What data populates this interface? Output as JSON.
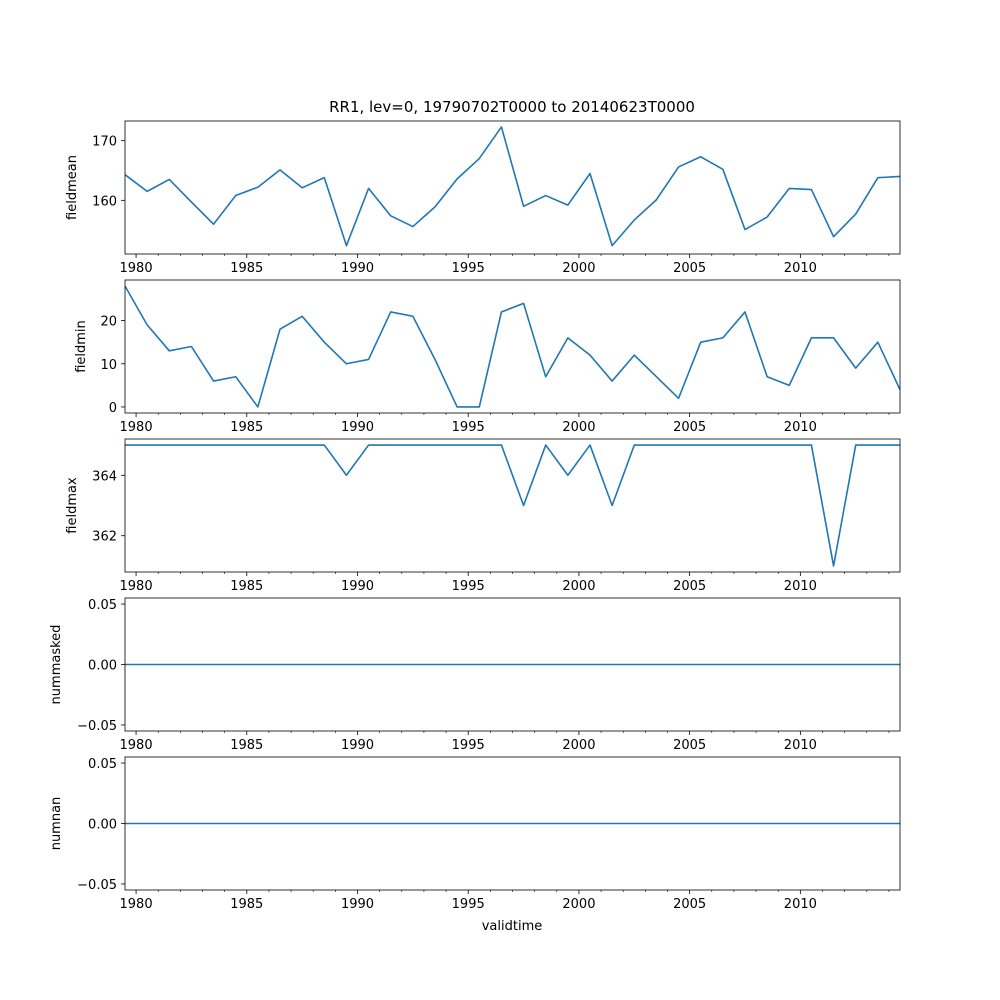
{
  "figure": {
    "title": "RR1, lev=0, 19790702T0000 to 20140623T0000",
    "xlabel": "validtime",
    "line_color": "#1f77b4"
  },
  "chart_data": [
    {
      "type": "line",
      "ylabel": "fieldmean",
      "xlim": [
        1979.5,
        2014.5
      ],
      "ylim": [
        151.0,
        173.3
      ],
      "x_ticks": [
        1980,
        1985,
        1990,
        1995,
        2000,
        2005,
        2010
      ],
      "y_ticks": [
        160,
        170
      ],
      "x": [
        1979.5,
        1980.5,
        1981.5,
        1982.5,
        1983.5,
        1984.5,
        1985.5,
        1986.5,
        1987.5,
        1988.5,
        1989.5,
        1990.5,
        1991.5,
        1992.5,
        1993.5,
        1994.5,
        1995.5,
        1996.5,
        1997.5,
        1998.5,
        1999.5,
        2000.5,
        2001.5,
        2002.5,
        2003.5,
        2004.5,
        2005.5,
        2006.5,
        2007.5,
        2008.5,
        2009.5,
        2010.5,
        2011.5,
        2012.5,
        2013.5,
        2014.5
      ],
      "values": [
        164.3,
        161.5,
        163.5,
        159.7,
        156.0,
        160.8,
        162.2,
        165.1,
        162.1,
        163.8,
        152.4,
        162.0,
        157.4,
        155.6,
        158.9,
        163.6,
        167.0,
        172.3,
        159.0,
        160.8,
        159.2,
        164.5,
        152.4,
        156.7,
        160.1,
        165.6,
        167.3,
        165.2,
        155.1,
        157.2,
        162.0,
        161.8,
        153.9,
        157.7,
        163.8,
        164.0
      ]
    },
    {
      "type": "line",
      "ylabel": "fieldmin",
      "xlim": [
        1979.5,
        2014.5
      ],
      "ylim": [
        -1.4,
        29.4
      ],
      "x_ticks": [
        1980,
        1985,
        1990,
        1995,
        2000,
        2005,
        2010
      ],
      "y_ticks": [
        0,
        10,
        20
      ],
      "x": [
        1979.5,
        1980.5,
        1981.5,
        1982.5,
        1983.5,
        1984.5,
        1985.5,
        1986.5,
        1987.5,
        1988.5,
        1989.5,
        1990.5,
        1991.5,
        1992.5,
        1993.5,
        1994.5,
        1995.5,
        1996.5,
        1997.5,
        1998.5,
        1999.5,
        2000.5,
        2001.5,
        2002.5,
        2003.5,
        2004.5,
        2005.5,
        2006.5,
        2007.5,
        2008.5,
        2009.5,
        2010.5,
        2011.5,
        2012.5,
        2013.5,
        2014.5
      ],
      "values": [
        28,
        19,
        13,
        14,
        6,
        7,
        0,
        18,
        21,
        15,
        10,
        11,
        22,
        21,
        11,
        0,
        0,
        22,
        24,
        7,
        16,
        12,
        6,
        12,
        7,
        2,
        15,
        16,
        22,
        7,
        5,
        16,
        16,
        9,
        15,
        4
      ]
    },
    {
      "type": "line",
      "ylabel": "fieldmax",
      "xlim": [
        1979.5,
        2014.5
      ],
      "ylim": [
        360.8,
        365.2
      ],
      "x_ticks": [
        1980,
        1985,
        1990,
        1995,
        2000,
        2005,
        2010
      ],
      "y_ticks": [
        362,
        364
      ],
      "x": [
        1979.5,
        1980.5,
        1981.5,
        1982.5,
        1983.5,
        1984.5,
        1985.5,
        1986.5,
        1987.5,
        1988.5,
        1989.5,
        1990.5,
        1991.5,
        1992.5,
        1993.5,
        1994.5,
        1995.5,
        1996.5,
        1997.5,
        1998.5,
        1999.5,
        2000.5,
        2001.5,
        2002.5,
        2003.5,
        2004.5,
        2005.5,
        2006.5,
        2007.5,
        2008.5,
        2009.5,
        2010.5,
        2011.5,
        2012.5,
        2013.5,
        2014.5
      ],
      "values": [
        365,
        365,
        365,
        365,
        365,
        365,
        365,
        365,
        365,
        365,
        364,
        365,
        365,
        365,
        365,
        365,
        365,
        365,
        363,
        365,
        364,
        365,
        363,
        365,
        365,
        365,
        365,
        365,
        365,
        365,
        365,
        365,
        361,
        365,
        365,
        365
      ]
    },
    {
      "type": "line",
      "ylabel": "nummasked",
      "xlim": [
        1979.5,
        2014.5
      ],
      "ylim": [
        -0.055,
        0.055
      ],
      "x_ticks": [
        1980,
        1985,
        1990,
        1995,
        2000,
        2005,
        2010
      ],
      "y_ticks": [
        -0.05,
        0.0,
        0.05
      ],
      "y_tick_labels": [
        "−0.05",
        "0.00",
        "0.05"
      ],
      "x": [
        1979.5,
        2014.5
      ],
      "values": [
        0.0,
        0.0
      ]
    },
    {
      "type": "line",
      "ylabel": "numnan",
      "xlim": [
        1979.5,
        2014.5
      ],
      "ylim": [
        -0.055,
        0.055
      ],
      "x_ticks": [
        1980,
        1985,
        1990,
        1995,
        2000,
        2005,
        2010
      ],
      "y_ticks": [
        -0.05,
        0.0,
        0.05
      ],
      "y_tick_labels": [
        "−0.05",
        "0.00",
        "0.05"
      ],
      "x": [
        1979.5,
        2014.5
      ],
      "values": [
        0.0,
        0.0
      ]
    }
  ]
}
